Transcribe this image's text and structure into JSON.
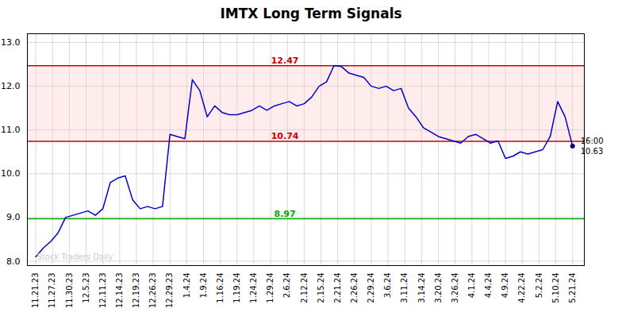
{
  "chart_data": {
    "type": "line",
    "title": "IMTX Long Term Signals",
    "xlim": [
      -0.5,
      32.7
    ],
    "xticks": [
      {
        "value": 0,
        "label": "11.21.23"
      },
      {
        "value": 1,
        "label": "11.27.23"
      },
      {
        "value": 2,
        "label": "11.30.23"
      },
      {
        "value": 3,
        "label": "12.5.23"
      },
      {
        "value": 4,
        "label": "12.11.23"
      },
      {
        "value": 5,
        "label": "12.14.23"
      },
      {
        "value": 6,
        "label": "12.19.23"
      },
      {
        "value": 7,
        "label": "12.26.23"
      },
      {
        "value": 8,
        "label": "12.29.23"
      },
      {
        "value": 9,
        "label": "1.4.24"
      },
      {
        "value": 10,
        "label": "1.9.24"
      },
      {
        "value": 11,
        "label": "1.16.24"
      },
      {
        "value": 12,
        "label": "1.19.24"
      },
      {
        "value": 13,
        "label": "1.24.24"
      },
      {
        "value": 14,
        "label": "1.29.24"
      },
      {
        "value": 15,
        "label": "2.6.24"
      },
      {
        "value": 16,
        "label": "2.12.24"
      },
      {
        "value": 17,
        "label": "2.15.24"
      },
      {
        "value": 18,
        "label": "2.21.24"
      },
      {
        "value": 19,
        "label": "2.26.24"
      },
      {
        "value": 20,
        "label": "2.29.24"
      },
      {
        "value": 21,
        "label": "3.6.24"
      },
      {
        "value": 22,
        "label": "3.11.24"
      },
      {
        "value": 23,
        "label": "3.14.24"
      },
      {
        "value": 24,
        "label": "3.20.24"
      },
      {
        "value": 25,
        "label": "3.26.24"
      },
      {
        "value": 26,
        "label": "4.1.24"
      },
      {
        "value": 27,
        "label": "4.4.24"
      },
      {
        "value": 28,
        "label": "4.9.24"
      },
      {
        "value": 29,
        "label": "4.22.24"
      },
      {
        "value": 30,
        "label": "5.2.24"
      },
      {
        "value": 31,
        "label": "5.10.24"
      },
      {
        "value": 32,
        "label": "5.21.24"
      }
    ],
    "ylim": [
      7.9,
      13.2
    ],
    "yticks": [
      8,
      9,
      10,
      11,
      12,
      13
    ],
    "grid": true,
    "color": "#0000cc",
    "values": [
      8.1,
      8.3,
      8.45,
      8.65,
      9.0,
      9.05,
      9.1,
      9.15,
      9.05,
      9.2,
      9.8,
      9.9,
      9.95,
      9.4,
      9.2,
      9.25,
      9.2,
      9.25,
      10.9,
      10.85,
      10.8,
      12.15,
      11.9,
      11.3,
      11.55,
      11.4,
      11.35,
      11.35,
      11.4,
      11.45,
      11.55,
      11.45,
      11.55,
      11.6,
      11.65,
      11.55,
      11.6,
      11.75,
      12.0,
      12.1,
      12.47,
      12.45,
      12.3,
      12.25,
      12.2,
      12.0,
      11.95,
      12.0,
      11.9,
      11.95,
      11.5,
      11.3,
      11.05,
      10.95,
      10.85,
      10.8,
      10.75,
      10.7,
      10.85,
      10.9,
      10.8,
      10.7,
      10.75,
      10.35,
      10.4,
      10.5,
      10.45,
      10.5,
      10.55,
      10.85,
      11.65,
      11.3,
      10.63
    ],
    "last_point": {
      "color": "#000080",
      "annotations": [
        "16:00",
        "10.63"
      ]
    },
    "hlines": [
      {
        "value": 8.97,
        "color": "#00aa00"
      },
      {
        "value": 12.47,
        "color": "#cc0000"
      },
      {
        "value": 10.74,
        "color": "#cc0000"
      }
    ],
    "band": {
      "from": 10.74,
      "to": 12.47,
      "color": "#ffcccc"
    },
    "watermark": {
      "text": "Stock Traders Daily",
      "color": "#cccccc"
    }
  }
}
